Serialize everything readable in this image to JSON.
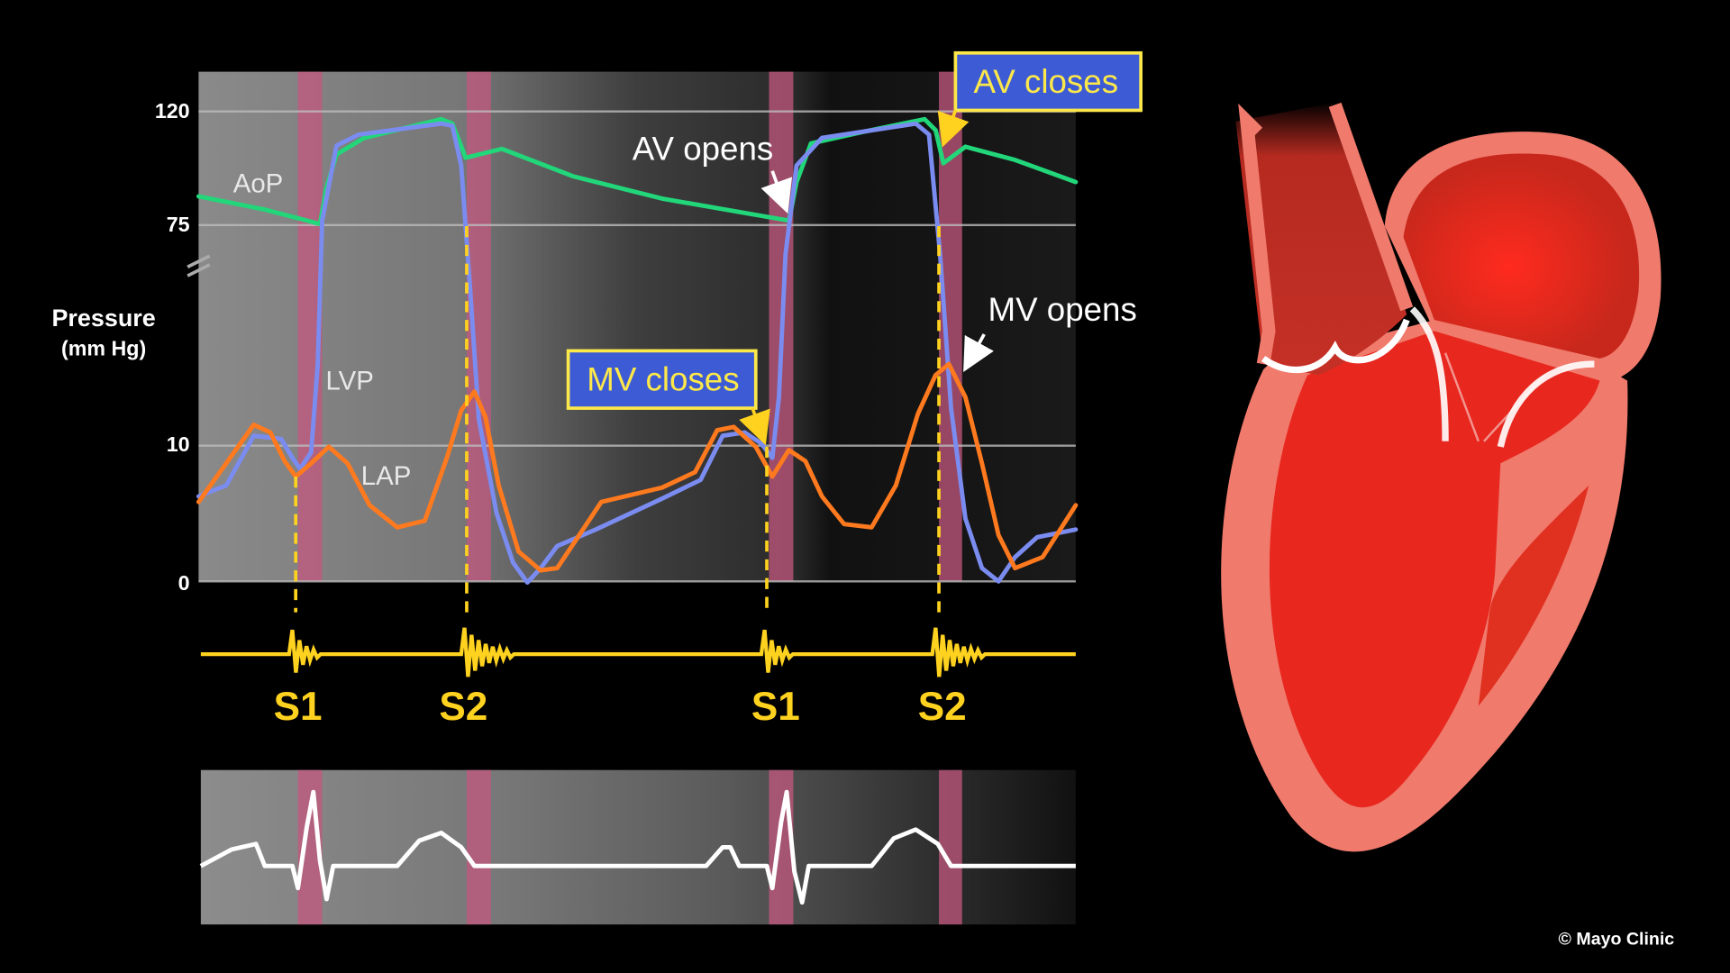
{
  "chart": {
    "y_axis": {
      "label": "Pressure",
      "unit": "(mm Hg)",
      "ticks": [
        "120",
        "75",
        "10",
        "0"
      ]
    },
    "curve_labels": {
      "aortic": "AoP",
      "left_ventricular": "LVP",
      "left_atrial": "LAP"
    },
    "annotations": {
      "av_opens": "AV opens",
      "av_closes": "AV closes",
      "mv_closes": "MV closes",
      "mv_opens": "MV opens"
    },
    "heart_sounds": [
      "S1",
      "S2",
      "S1",
      "S2"
    ]
  },
  "copyright": "© Mayo Clinic"
}
